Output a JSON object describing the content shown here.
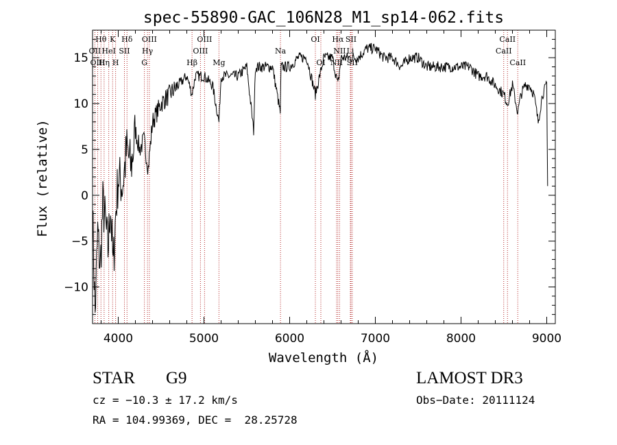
{
  "chart_data": {
    "type": "line",
    "title": "spec-55890-GAC_106N28_M1_sp14-062.fits",
    "xlabel": "Wavelength (Å)",
    "ylabel": "Flux (relative)",
    "xlim": [
      3700,
      9100
    ],
    "ylim": [
      -14,
      18
    ],
    "xticks": [
      4000,
      5000,
      6000,
      7000,
      8000,
      9000
    ],
    "yticks": [
      -10,
      -5,
      0,
      5,
      10,
      15
    ],
    "grid": false,
    "series": [
      {
        "name": "flux",
        "x": [
          3700,
          3730,
          3760,
          3790,
          3820,
          3850,
          3880,
          3910,
          3940,
          3970,
          4000,
          4050,
          4100,
          4150,
          4200,
          4250,
          4300,
          4350,
          4400,
          4450,
          4500,
          4600,
          4700,
          4800,
          4860,
          4900,
          5000,
          5100,
          5175,
          5200,
          5300,
          5400,
          5500,
          5580,
          5600,
          5700,
          5800,
          5890,
          5900,
          6000,
          6100,
          6200,
          6300,
          6400,
          6500,
          6563,
          6600,
          6700,
          6800,
          6900,
          7000,
          7100,
          7200,
          7300,
          7400,
          7500,
          7600,
          7700,
          7800,
          7900,
          8000,
          8100,
          8200,
          8300,
          8400,
          8498,
          8542,
          8600,
          8662,
          8700,
          8750,
          8800,
          8850,
          8900,
          8950,
          9000,
          9010
        ],
        "y": [
          -2,
          -13,
          -4,
          -8,
          -1,
          -3,
          -6,
          -1,
          -8,
          -2,
          2,
          1,
          5,
          3,
          7,
          5,
          6,
          3,
          8,
          9,
          10,
          11,
          12,
          13,
          11,
          13,
          13,
          12,
          8,
          13,
          13,
          13,
          14,
          7,
          14,
          14,
          14,
          9,
          14,
          14,
          15,
          15,
          11,
          15,
          15,
          12,
          15,
          15,
          15,
          16,
          16,
          15,
          15,
          14,
          15,
          15,
          14,
          14,
          14,
          14,
          14,
          14,
          13,
          13,
          12,
          11,
          10,
          12,
          9,
          11,
          12,
          12,
          11,
          8,
          11,
          12,
          1
        ]
      }
    ],
    "lines": [
      {
        "label": "Hθ",
        "wavelength": 3798,
        "row": 1
      },
      {
        "label": "OII",
        "wavelength": 3727,
        "row": 2
      },
      {
        "label": "OIII",
        "wavelength": 3760,
        "row": 3
      },
      {
        "label": "K",
        "wavelength": 3934,
        "row": 1
      },
      {
        "label": "HeI",
        "wavelength": 3889,
        "row": 2
      },
      {
        "label": "Hη",
        "wavelength": 3835,
        "row": 3
      },
      {
        "label": "Hδ",
        "wavelength": 4102,
        "row": 1
      },
      {
        "label": "SII",
        "wavelength": 4072,
        "row": 2
      },
      {
        "label": "H",
        "wavelength": 3969,
        "row": 3
      },
      {
        "label": "OIII",
        "wavelength": 4363,
        "row": 1
      },
      {
        "label": "Hγ",
        "wavelength": 4341,
        "row": 2
      },
      {
        "label": "G",
        "wavelength": 4305,
        "row": 3
      },
      {
        "label": "Hβ",
        "wavelength": 4861,
        "row": 3
      },
      {
        "label": "OIII",
        "wavelength": 4959,
        "row": 2
      },
      {
        "label": "OIII",
        "wavelength": 5007,
        "row": 1
      },
      {
        "label": "Mg",
        "wavelength": 5175,
        "row": 3
      },
      {
        "label": "Na",
        "wavelength": 5893,
        "row": 2
      },
      {
        "label": "OI",
        "wavelength": 6300,
        "row": 1
      },
      {
        "label": "OI",
        "wavelength": 6364,
        "row": 3
      },
      {
        "label": "NII",
        "wavelength": 6548,
        "row": 3
      },
      {
        "label": "Hα",
        "wavelength": 6563,
        "row": 1
      },
      {
        "label": "NII",
        "wavelength": 6583,
        "row": 2
      },
      {
        "label": "SII",
        "wavelength": 6716,
        "row": 1
      },
      {
        "label": "SII",
        "wavelength": 6731,
        "row": 3
      },
      {
        "label": "Li",
        "wavelength": 6708,
        "row": 2
      },
      {
        "label": "CaII",
        "wavelength": 8498,
        "row": 2
      },
      {
        "label": "CaII",
        "wavelength": 8542,
        "row": 1
      },
      {
        "label": "CaII",
        "wavelength": 8662,
        "row": 3
      }
    ]
  },
  "info": {
    "class": "STAR",
    "subclass": "G9",
    "survey": "LAMOST DR3",
    "cz": "cz = −10.3 ± 17.2 km/s",
    "obs_date": "Obs−Date: 20111124",
    "coords": "RA = 104.99369, DEC =  28.25728"
  },
  "colors": {
    "line_marker": "#b22222",
    "spectrum": "#000000"
  }
}
